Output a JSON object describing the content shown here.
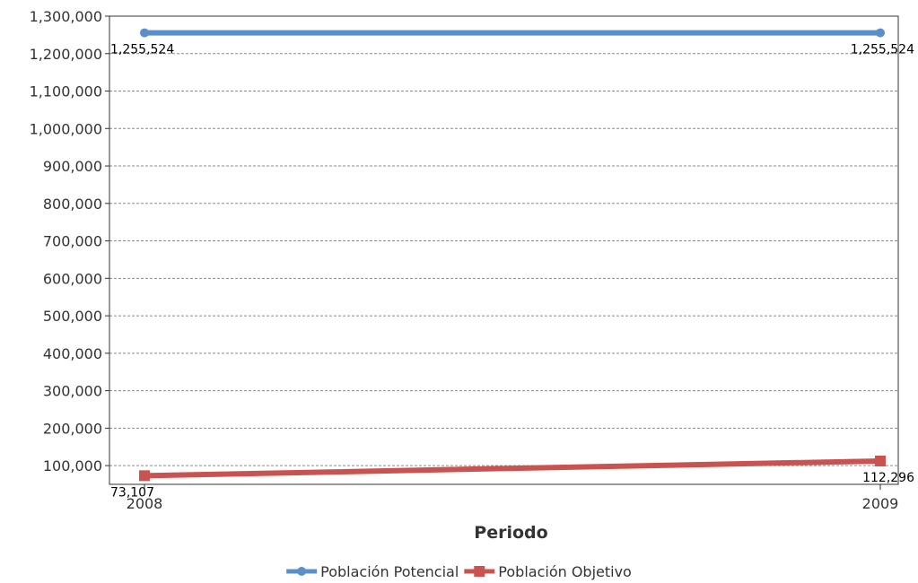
{
  "chart_data": {
    "type": "line",
    "title": "",
    "xlabel": "Periodo",
    "ylabel": "",
    "x": [
      "2008",
      "2009"
    ],
    "ylim": [
      50000,
      1300000
    ],
    "yticks": [
      100000,
      200000,
      300000,
      400000,
      500000,
      600000,
      700000,
      800000,
      900000,
      1000000,
      1100000,
      1200000,
      1300000
    ],
    "ytick_labels": [
      "100,000",
      "200,000",
      "300,000",
      "400,000",
      "500,000",
      "600,000",
      "700,000",
      "800,000",
      "900,000",
      "1,000,000",
      "1,100,000",
      "1,200,000",
      "1,300,000"
    ],
    "grid": true,
    "legend_position": "bottom",
    "series": [
      {
        "name": "Población Potencial",
        "values": [
          1255524,
          1255524
        ],
        "labels": [
          "1,255,524",
          "1,255,524"
        ],
        "color": "#5b8fc9",
        "marker": "circle"
      },
      {
        "name": "Población Objetivo",
        "values": [
          73107,
          112296
        ],
        "labels": [
          "73,107",
          "112,296"
        ],
        "color": "#c9534e",
        "marker": "square"
      }
    ]
  }
}
